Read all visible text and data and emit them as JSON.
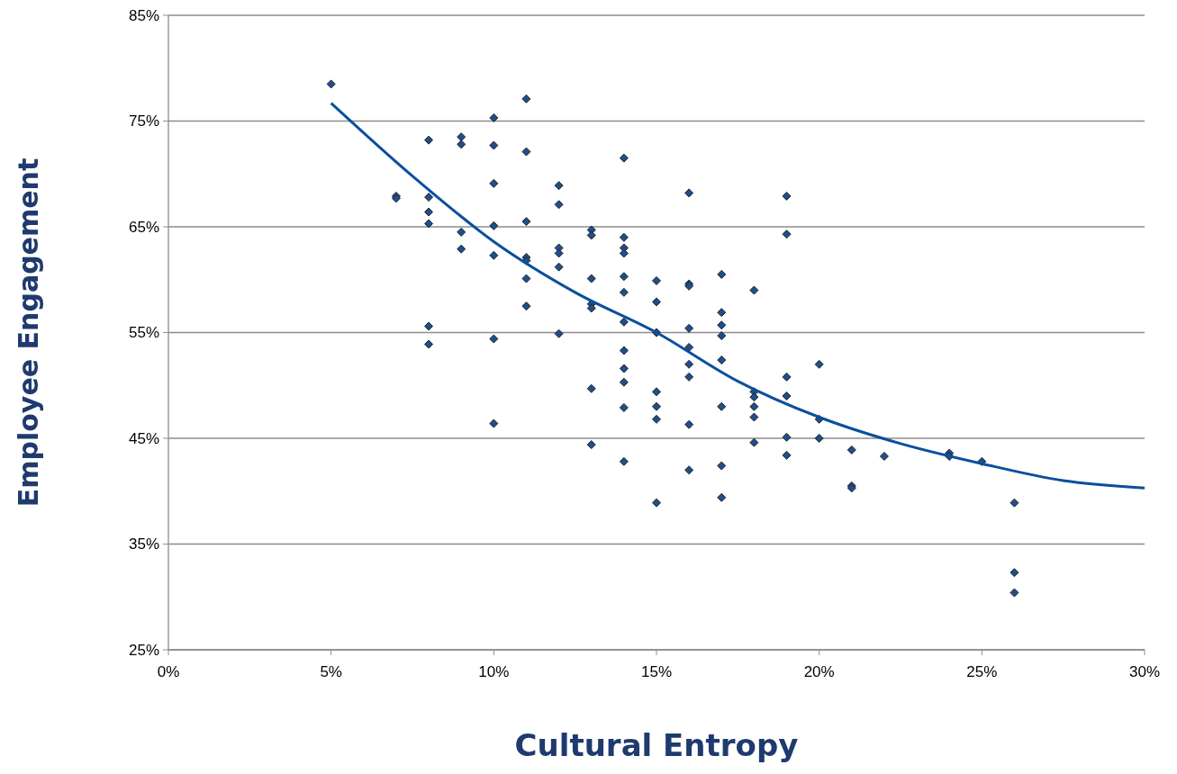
{
  "chart_data": {
    "type": "scatter",
    "xlabel": "Cultural Entropy",
    "ylabel": "Employee Engagement",
    "xlim": [
      0,
      30
    ],
    "ylim": [
      25,
      85
    ],
    "xticks": [
      {
        "value": 0,
        "label": "0%"
      },
      {
        "value": 5,
        "label": "5%"
      },
      {
        "value": 10,
        "label": "10%"
      },
      {
        "value": 15,
        "label": "15%"
      },
      {
        "value": 20,
        "label": "20%"
      },
      {
        "value": 25,
        "label": "25%"
      },
      {
        "value": 30,
        "label": "30%"
      }
    ],
    "yticks": [
      {
        "value": 25,
        "label": "25%"
      },
      {
        "value": 35,
        "label": "35%"
      },
      {
        "value": 45,
        "label": "45%"
      },
      {
        "value": 55,
        "label": "55%"
      },
      {
        "value": 65,
        "label": "65%"
      },
      {
        "value": 75,
        "label": "75%"
      },
      {
        "value": 85,
        "label": "85%"
      }
    ],
    "grid": "y",
    "series": [
      {
        "marker": "diamond",
        "color": "#1f4e8c",
        "x": [
          5,
          7,
          7,
          8,
          8,
          8,
          8,
          8,
          8,
          9,
          9,
          9,
          9,
          10,
          10,
          10,
          10,
          10,
          10,
          10,
          11,
          11,
          11,
          11,
          11,
          11,
          11,
          12,
          12,
          12,
          12,
          12,
          12,
          13,
          13,
          13,
          13,
          13,
          13,
          13,
          14,
          14,
          14,
          14,
          14,
          14,
          14,
          14,
          14,
          14,
          14,
          14,
          15,
          15,
          15,
          15,
          15,
          15,
          15,
          16,
          16,
          16,
          16,
          16,
          16,
          16,
          16,
          16,
          17,
          17,
          17,
          17,
          17,
          17,
          17,
          17,
          18,
          18,
          18,
          18,
          18,
          18,
          19,
          19,
          19,
          19,
          19,
          19,
          20,
          20,
          20,
          21,
          21,
          21,
          22,
          24,
          24,
          25,
          26,
          26,
          26
        ],
        "values": [
          78.5,
          67.9,
          67.7,
          73.2,
          67.8,
          66.4,
          65.3,
          55.6,
          53.9,
          73.5,
          72.8,
          64.5,
          62.9,
          75.3,
          72.7,
          69.1,
          65.1,
          62.3,
          54.4,
          46.4,
          77.1,
          72.1,
          65.5,
          62.1,
          61.8,
          60.1,
          57.5,
          68.9,
          67.1,
          63.0,
          62.5,
          61.2,
          54.9,
          64.7,
          64.2,
          60.1,
          57.7,
          57.3,
          49.7,
          44.4,
          71.5,
          64.0,
          63.0,
          62.5,
          60.3,
          58.8,
          56.0,
          53.3,
          51.6,
          50.3,
          47.9,
          42.8,
          59.9,
          57.9,
          55.0,
          49.4,
          48.0,
          46.8,
          38.9,
          68.2,
          59.6,
          59.4,
          55.4,
          53.6,
          52.0,
          50.8,
          46.3,
          42.0,
          60.5,
          56.9,
          55.7,
          54.7,
          52.4,
          48.0,
          42.4,
          39.4,
          59.0,
          49.4,
          48.9,
          48.0,
          47.0,
          44.6,
          67.9,
          64.3,
          50.8,
          49.0,
          45.1,
          43.4,
          52.0,
          46.8,
          45.0,
          43.9,
          40.5,
          40.3,
          43.3,
          43.6,
          43.3,
          42.8,
          38.9,
          32.3,
          30.4
        ]
      },
      {
        "type": "line",
        "marker": "none",
        "line_style": "solid",
        "color": "#0a4f9c",
        "x": [
          5,
          7.5,
          10,
          12.5,
          15,
          17.5,
          20,
          22.5,
          25,
          27.5,
          30
        ],
        "values": [
          76.7,
          69.8,
          63.6,
          58.8,
          55.0,
          50.4,
          47.0,
          44.5,
          42.6,
          41.0,
          40.3
        ]
      }
    ]
  }
}
